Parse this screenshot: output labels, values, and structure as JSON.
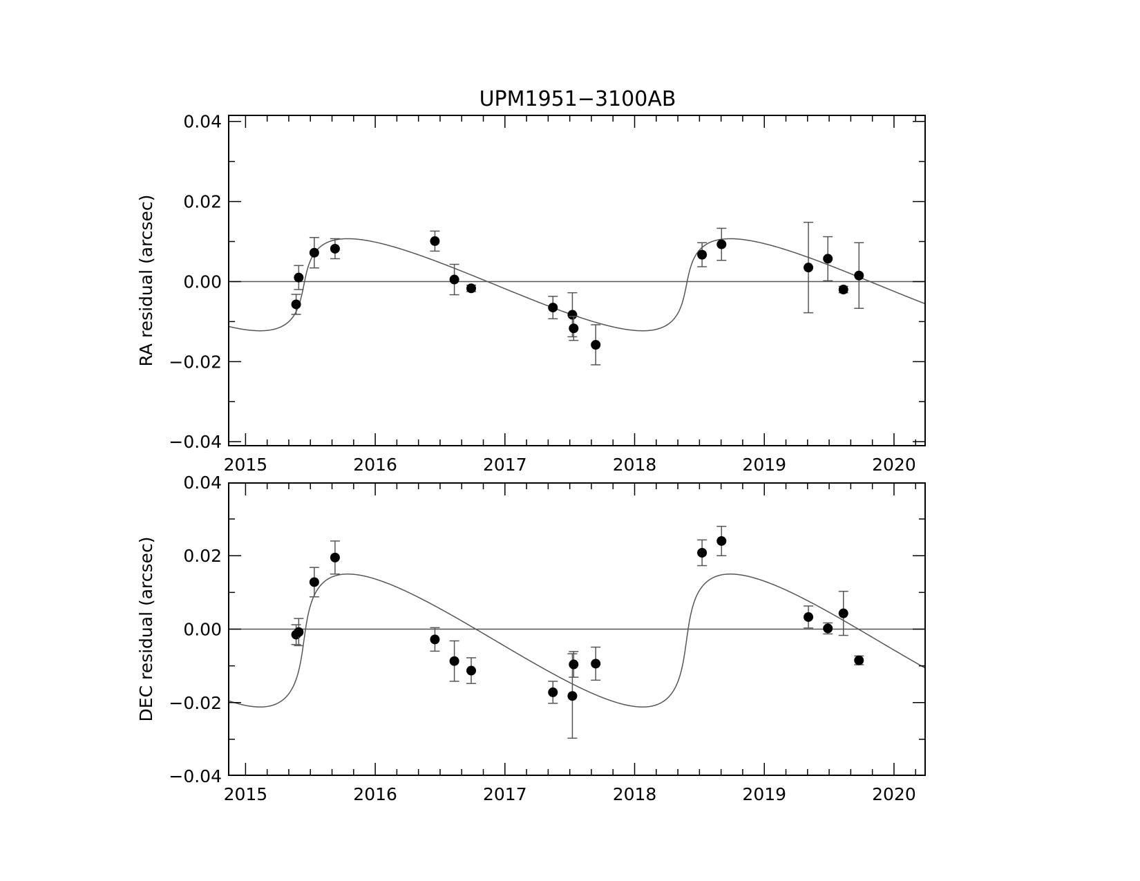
{
  "title": "UPM1951−3100AB",
  "colors": {
    "axis": "#000000",
    "curve": "#555555",
    "points": "#000000"
  },
  "chart_data": [
    {
      "type": "scatter",
      "panel": "top",
      "ylabel": "RA residual (arcsec)",
      "xlim": [
        2014.87,
        2020.24
      ],
      "ylim": [
        -0.041,
        0.0415
      ],
      "xticks": [
        2015,
        2016,
        2017,
        2018,
        2019,
        2020
      ],
      "yticks": [
        -0.04,
        -0.02,
        0.0,
        0.02,
        0.04
      ],
      "xtick_labels": [
        "2015",
        "2016",
        "2017",
        "2018",
        "2019",
        "2020"
      ],
      "ytick_labels": [
        "−0.04",
        "−0.02",
        "0.00",
        "0.02",
        "0.04"
      ],
      "zero_line": true,
      "model_amplitude": 0.0115,
      "model_offset": -0.0008,
      "points": [
        {
          "x": 2015.39,
          "y": -0.0057,
          "err": 0.0025
        },
        {
          "x": 2015.41,
          "y": 0.001,
          "err": 0.003
        },
        {
          "x": 2015.53,
          "y": 0.0072,
          "err": 0.0038
        },
        {
          "x": 2015.69,
          "y": 0.0082,
          "err": 0.0025
        },
        {
          "x": 2016.46,
          "y": 0.0101,
          "err": 0.0025
        },
        {
          "x": 2016.61,
          "y": 0.0005,
          "err": 0.0038
        },
        {
          "x": 2016.74,
          "y": -0.0017,
          "err": 0.0008
        },
        {
          "x": 2017.37,
          "y": -0.0065,
          "err": 0.0028
        },
        {
          "x": 2017.52,
          "y": -0.0083,
          "err": 0.0055
        },
        {
          "x": 2017.53,
          "y": -0.0117,
          "err": 0.003
        },
        {
          "x": 2017.7,
          "y": -0.0158,
          "err": 0.005
        },
        {
          "x": 2018.52,
          "y": 0.0067,
          "err": 0.003
        },
        {
          "x": 2018.67,
          "y": 0.0093,
          "err": 0.004
        },
        {
          "x": 2019.34,
          "y": 0.0035,
          "err": 0.0113
        },
        {
          "x": 2019.49,
          "y": 0.0057,
          "err": 0.0055
        },
        {
          "x": 2019.61,
          "y": -0.002,
          "err": 0.0008
        },
        {
          "x": 2019.73,
          "y": 0.0015,
          "err": 0.0082
        }
      ]
    },
    {
      "type": "scatter",
      "panel": "bottom",
      "ylabel": "DEC residual (arcsec)",
      "xlim": [
        2014.87,
        2020.24
      ],
      "ylim": [
        -0.0398,
        0.0398
      ],
      "xticks": [
        2015,
        2016,
        2017,
        2018,
        2019,
        2020
      ],
      "yticks": [
        -0.04,
        -0.02,
        0.0,
        0.02,
        0.04
      ],
      "xtick_labels": [
        "2015",
        "2016",
        "2017",
        "2018",
        "2019",
        "2020"
      ],
      "ytick_labels": [
        "−0.04",
        "−0.02",
        "0.00",
        "0.02",
        "0.04"
      ],
      "zero_line": true,
      "model_amplitude": 0.0181,
      "model_offset": -0.0031,
      "points": [
        {
          "x": 2015.39,
          "y": -0.0015,
          "err": 0.0027
        },
        {
          "x": 2015.41,
          "y": -0.0008,
          "err": 0.0037
        },
        {
          "x": 2015.53,
          "y": 0.0128,
          "err": 0.004
        },
        {
          "x": 2015.69,
          "y": 0.0195,
          "err": 0.0045
        },
        {
          "x": 2016.46,
          "y": -0.0028,
          "err": 0.0032
        },
        {
          "x": 2016.61,
          "y": -0.0087,
          "err": 0.0055
        },
        {
          "x": 2016.74,
          "y": -0.0113,
          "err": 0.0035
        },
        {
          "x": 2017.37,
          "y": -0.0172,
          "err": 0.003
        },
        {
          "x": 2017.52,
          "y": -0.0182,
          "err": 0.0115
        },
        {
          "x": 2017.53,
          "y": -0.0096,
          "err": 0.0035
        },
        {
          "x": 2017.7,
          "y": -0.0094,
          "err": 0.0045
        },
        {
          "x": 2018.52,
          "y": 0.0208,
          "err": 0.0035
        },
        {
          "x": 2018.67,
          "y": 0.024,
          "err": 0.004
        },
        {
          "x": 2019.34,
          "y": 0.0033,
          "err": 0.003
        },
        {
          "x": 2019.49,
          "y": 0.0002,
          "err": 0.0015
        },
        {
          "x": 2019.61,
          "y": 0.0043,
          "err": 0.006
        },
        {
          "x": 2019.73,
          "y": -0.0085,
          "err": 0.0012
        }
      ]
    }
  ]
}
